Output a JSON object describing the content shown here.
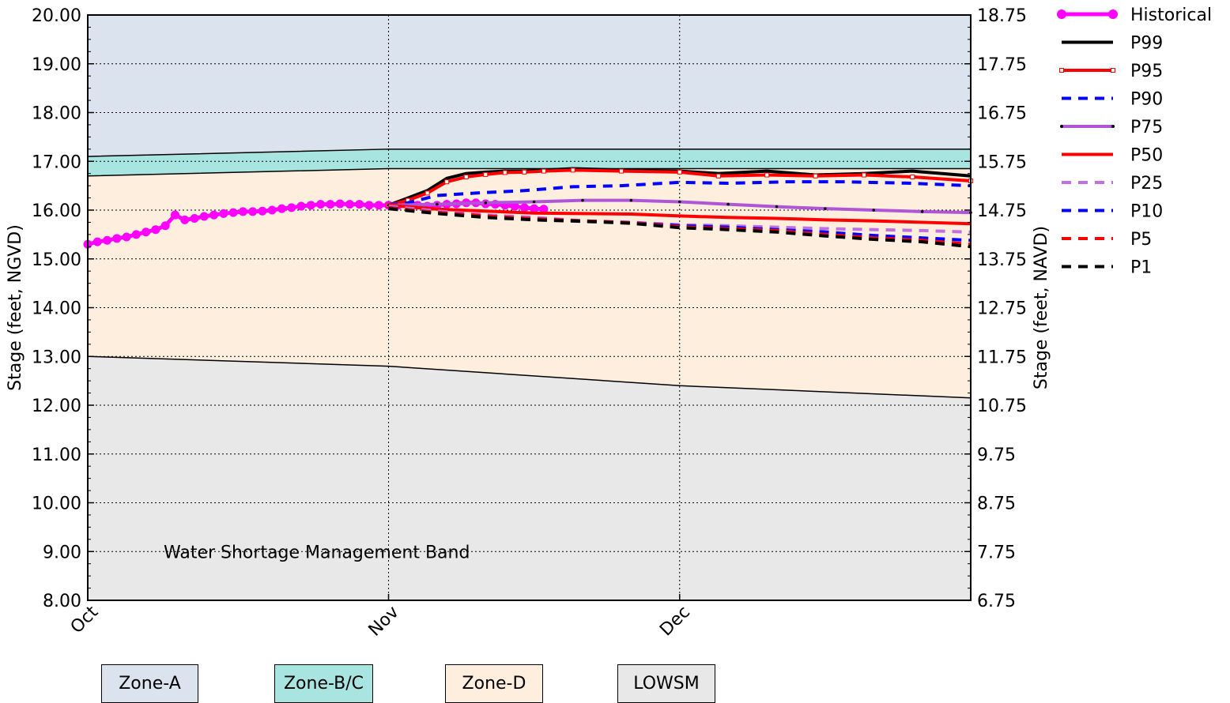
{
  "chart_data": {
    "type": "line",
    "title": "",
    "ylabel": "Stage (feet, NGVD)",
    "y2label": "Stage (feet, NAVD)",
    "ylim": [
      8,
      20
    ],
    "y2lim": [
      6.75,
      18.75
    ],
    "x_ticks": [
      {
        "day": 0,
        "label": "Oct"
      },
      {
        "day": 31,
        "label": "Nov"
      },
      {
        "day": 61,
        "label": "Dec"
      }
    ],
    "xlim_days": [
      0,
      91
    ],
    "y_ticks": [
      "20.00",
      "19.00",
      "18.00",
      "17.00",
      "16.00",
      "15.00",
      "14.00",
      "13.00",
      "12.00",
      "11.00",
      "10.00",
      "9.00",
      "8.00"
    ],
    "y2_ticks": [
      "18.75",
      "17.75",
      "16.75",
      "15.75",
      "14.75",
      "13.75",
      "12.75",
      "11.75",
      "10.75",
      "9.75",
      "8.75",
      "7.75",
      "6.75"
    ],
    "grid": true,
    "legend_position": "outside-right",
    "annotation": "Water Shortage Management Band",
    "zones": {
      "zone_a_top": 20,
      "zone_bc_top": [
        [
          0,
          17.1
        ],
        [
          31,
          17.25
        ],
        [
          91,
          17.25
        ]
      ],
      "zone_d_top": [
        [
          0,
          16.7
        ],
        [
          31,
          16.85
        ],
        [
          91,
          16.85
        ]
      ],
      "lowsm_top": [
        [
          0,
          13.0
        ],
        [
          31,
          12.8
        ],
        [
          61,
          12.4
        ],
        [
          91,
          12.15
        ]
      ],
      "colors": {
        "zone_a": "#dae3ee",
        "zone_bc": "#a8e4e0",
        "zone_d": "#fdeedd",
        "lowsm": "#e8e8e8"
      }
    },
    "series": [
      {
        "name": "Historical",
        "color": "#ff00ff",
        "style": "solid-dots",
        "width": 5,
        "points": [
          [
            0,
            15.3
          ],
          [
            1,
            15.35
          ],
          [
            2,
            15.38
          ],
          [
            3,
            15.42
          ],
          [
            4,
            15.45
          ],
          [
            5,
            15.5
          ],
          [
            6,
            15.55
          ],
          [
            7,
            15.6
          ],
          [
            8,
            15.68
          ],
          [
            9,
            15.9
          ],
          [
            10,
            15.8
          ],
          [
            11,
            15.83
          ],
          [
            12,
            15.87
          ],
          [
            13,
            15.9
          ],
          [
            14,
            15.93
          ],
          [
            15,
            15.95
          ],
          [
            16,
            15.97
          ],
          [
            17,
            15.97
          ],
          [
            18,
            15.98
          ],
          [
            19,
            16.0
          ],
          [
            20,
            16.03
          ],
          [
            21,
            16.05
          ],
          [
            22,
            16.08
          ],
          [
            23,
            16.1
          ],
          [
            24,
            16.12
          ],
          [
            25,
            16.12
          ],
          [
            26,
            16.13
          ],
          [
            27,
            16.12
          ],
          [
            28,
            16.12
          ],
          [
            29,
            16.1
          ],
          [
            30,
            16.1
          ],
          [
            31,
            16.1
          ],
          [
            32,
            16.1
          ],
          [
            33,
            16.12
          ],
          [
            34,
            16.1
          ],
          [
            35,
            16.08
          ],
          [
            36,
            16.1
          ],
          [
            37,
            16.12
          ],
          [
            38,
            16.13
          ],
          [
            39,
            16.15
          ],
          [
            40,
            16.15
          ],
          [
            41,
            16.13
          ],
          [
            42,
            16.12
          ],
          [
            43,
            16.1
          ],
          [
            44,
            16.08
          ],
          [
            45,
            16.05
          ],
          [
            46,
            16.03
          ],
          [
            47,
            16.02
          ]
        ]
      },
      {
        "name": "P99",
        "color": "#000000",
        "style": "solid",
        "width": 4,
        "points": [
          [
            31,
            16.1
          ],
          [
            33,
            16.25
          ],
          [
            35,
            16.4
          ],
          [
            37,
            16.65
          ],
          [
            39,
            16.75
          ],
          [
            41,
            16.78
          ],
          [
            43,
            16.8
          ],
          [
            45,
            16.8
          ],
          [
            47,
            16.82
          ],
          [
            50,
            16.85
          ],
          [
            55,
            16.82
          ],
          [
            61,
            16.8
          ],
          [
            65,
            16.75
          ],
          [
            70,
            16.8
          ],
          [
            75,
            16.72
          ],
          [
            80,
            16.75
          ],
          [
            85,
            16.8
          ],
          [
            91,
            16.7
          ]
        ]
      },
      {
        "name": "P95",
        "color": "#ff0000",
        "style": "solid-squares",
        "width": 4,
        "points": [
          [
            31,
            16.1
          ],
          [
            33,
            16.2
          ],
          [
            35,
            16.35
          ],
          [
            37,
            16.58
          ],
          [
            39,
            16.68
          ],
          [
            41,
            16.73
          ],
          [
            43,
            16.77
          ],
          [
            45,
            16.78
          ],
          [
            47,
            16.8
          ],
          [
            50,
            16.82
          ],
          [
            55,
            16.8
          ],
          [
            61,
            16.78
          ],
          [
            65,
            16.7
          ],
          [
            70,
            16.72
          ],
          [
            75,
            16.7
          ],
          [
            80,
            16.72
          ],
          [
            85,
            16.68
          ],
          [
            91,
            16.6
          ]
        ]
      },
      {
        "name": "P90",
        "color": "#0000ff",
        "style": "dashed",
        "width": 4,
        "points": [
          [
            31,
            16.1
          ],
          [
            33,
            16.15
          ],
          [
            36,
            16.3
          ],
          [
            40,
            16.35
          ],
          [
            45,
            16.4
          ],
          [
            50,
            16.48
          ],
          [
            55,
            16.5
          ],
          [
            61,
            16.57
          ],
          [
            66,
            16.55
          ],
          [
            72,
            16.58
          ],
          [
            78,
            16.58
          ],
          [
            85,
            16.55
          ],
          [
            91,
            16.5
          ]
        ]
      },
      {
        "name": "P75",
        "color": "#b055d8",
        "style": "solid-dots",
        "width": 4,
        "points": [
          [
            31,
            16.1
          ],
          [
            36,
            16.12
          ],
          [
            41,
            16.15
          ],
          [
            46,
            16.17
          ],
          [
            51,
            16.2
          ],
          [
            56,
            16.2
          ],
          [
            61,
            16.17
          ],
          [
            66,
            16.12
          ],
          [
            71,
            16.07
          ],
          [
            76,
            16.03
          ],
          [
            81,
            16.0
          ],
          [
            86,
            15.97
          ],
          [
            91,
            15.95
          ]
        ]
      },
      {
        "name": "P50",
        "color": "#ff0000",
        "style": "solid",
        "width": 4,
        "points": [
          [
            31,
            16.1
          ],
          [
            36,
            16.02
          ],
          [
            41,
            15.98
          ],
          [
            46,
            15.94
          ],
          [
            51,
            15.93
          ],
          [
            56,
            15.92
          ],
          [
            61,
            15.88
          ],
          [
            66,
            15.85
          ],
          [
            71,
            15.83
          ],
          [
            76,
            15.8
          ],
          [
            81,
            15.78
          ],
          [
            86,
            15.75
          ],
          [
            91,
            15.72
          ]
        ]
      },
      {
        "name": "P25",
        "color": "#c070e0",
        "style": "dashed",
        "width": 4,
        "points": [
          [
            31,
            16.08
          ],
          [
            36,
            15.98
          ],
          [
            41,
            15.9
          ],
          [
            46,
            15.85
          ],
          [
            51,
            15.78
          ],
          [
            56,
            15.75
          ],
          [
            61,
            15.7
          ],
          [
            66,
            15.68
          ],
          [
            71,
            15.65
          ],
          [
            76,
            15.62
          ],
          [
            81,
            15.6
          ],
          [
            86,
            15.58
          ],
          [
            91,
            15.55
          ]
        ]
      },
      {
        "name": "P10",
        "color": "#0000ff",
        "style": "dashed",
        "width": 4,
        "points": [
          [
            31,
            16.05
          ],
          [
            36,
            15.95
          ],
          [
            41,
            15.88
          ],
          [
            46,
            15.82
          ],
          [
            51,
            15.78
          ],
          [
            56,
            15.74
          ],
          [
            61,
            15.68
          ],
          [
            66,
            15.65
          ],
          [
            71,
            15.6
          ],
          [
            76,
            15.55
          ],
          [
            81,
            15.48
          ],
          [
            86,
            15.43
          ],
          [
            91,
            15.38
          ]
        ]
      },
      {
        "name": "P5",
        "color": "#ff0000",
        "style": "dashed",
        "width": 4,
        "points": [
          [
            31,
            16.05
          ],
          [
            36,
            15.95
          ],
          [
            41,
            15.88
          ],
          [
            46,
            15.82
          ],
          [
            51,
            15.78
          ],
          [
            56,
            15.74
          ],
          [
            61,
            15.66
          ],
          [
            66,
            15.62
          ],
          [
            71,
            15.58
          ],
          [
            76,
            15.5
          ],
          [
            81,
            15.43
          ],
          [
            86,
            15.38
          ],
          [
            91,
            15.3
          ]
        ]
      },
      {
        "name": "P1",
        "color": "#000000",
        "style": "dashed",
        "width": 4,
        "points": [
          [
            31,
            16.03
          ],
          [
            36,
            15.93
          ],
          [
            41,
            15.85
          ],
          [
            46,
            15.8
          ],
          [
            51,
            15.77
          ],
          [
            56,
            15.73
          ],
          [
            61,
            15.64
          ],
          [
            66,
            15.6
          ],
          [
            71,
            15.55
          ],
          [
            76,
            15.47
          ],
          [
            81,
            15.4
          ],
          [
            86,
            15.35
          ],
          [
            91,
            15.25
          ]
        ]
      }
    ]
  },
  "zone_legend": [
    {
      "label": "Zone-A",
      "color": "#dae3ee"
    },
    {
      "label": "Zone-B/C",
      "color": "#a8e4e0"
    },
    {
      "label": "Zone-D",
      "color": "#fdeedd"
    },
    {
      "label": "LOWSM",
      "color": "#e8e8e8"
    }
  ]
}
